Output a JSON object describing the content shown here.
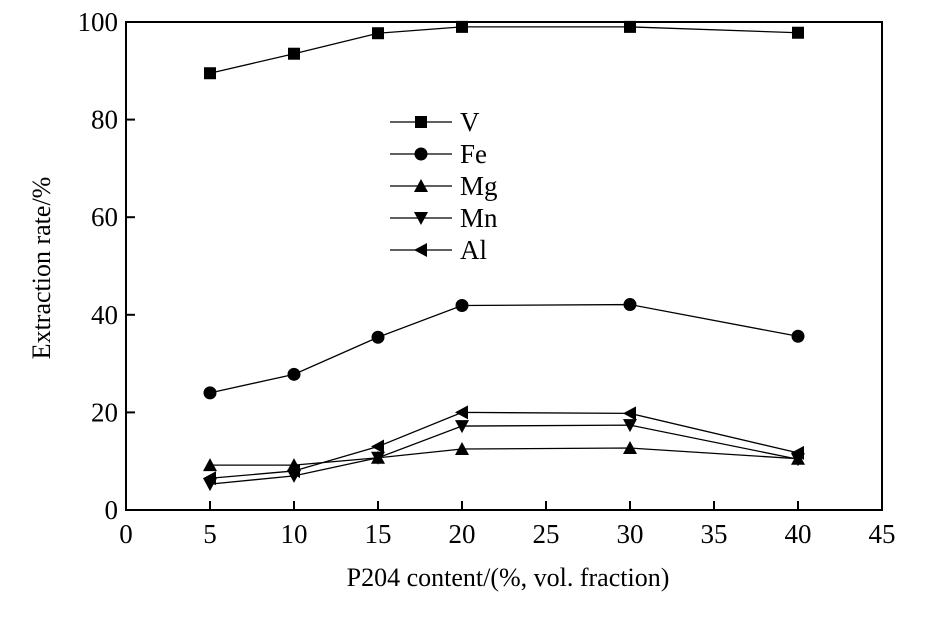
{
  "chart_data": {
    "type": "line",
    "title": "",
    "xlabel": "P204 content/(%, vol. fraction)",
    "ylabel": "Extraction rate/%",
    "xlim": [
      0,
      45
    ],
    "ylim": [
      0,
      100
    ],
    "x_ticks": [
      0,
      5,
      10,
      15,
      20,
      25,
      30,
      35,
      40,
      45
    ],
    "y_ticks": [
      0,
      20,
      40,
      60,
      80,
      100
    ],
    "grid": false,
    "legend_position": "upper-center",
    "x": [
      5,
      10,
      15,
      20,
      30,
      40
    ],
    "series": [
      {
        "name": "V",
        "marker": "square",
        "values": [
          89.5,
          93.5,
          97.7,
          99.0,
          99.0,
          97.8
        ]
      },
      {
        "name": "Fe",
        "marker": "circle",
        "values": [
          24.0,
          27.8,
          35.4,
          41.9,
          42.1,
          35.6
        ]
      },
      {
        "name": "Mg",
        "marker": "triangle-up",
        "values": [
          9.2,
          9.2,
          10.7,
          12.5,
          12.7,
          10.5
        ]
      },
      {
        "name": "Mn",
        "marker": "triangle-down",
        "values": [
          5.3,
          7.0,
          10.7,
          17.2,
          17.4,
          10.4
        ]
      },
      {
        "name": "Al",
        "marker": "triangle-left",
        "values": [
          6.5,
          8.0,
          13.0,
          20.0,
          19.8,
          11.7
        ]
      }
    ]
  }
}
